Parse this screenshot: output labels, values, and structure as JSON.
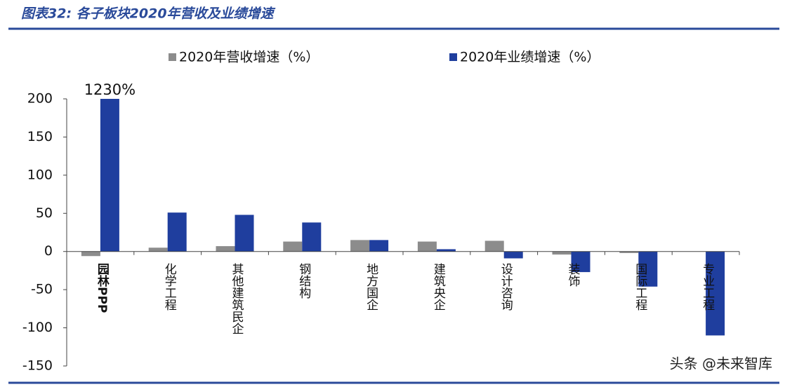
{
  "chart_data": {
    "type": "bar",
    "title": "图表32: 各子板块2020年营收及业绩增速",
    "categories": [
      "园林PPP",
      "化学工程",
      "其他建筑民企",
      "钢结构",
      "地方国企",
      "建筑央企",
      "设计咨询",
      "装饰",
      "国际工程",
      "专业工程"
    ],
    "series": [
      {
        "name": "2020年营收增速（%）",
        "color": "#8c8c8c",
        "values": [
          -6,
          5,
          7,
          13,
          15,
          13,
          14,
          -4,
          -2,
          0
        ]
      },
      {
        "name": "2020年业绩增速（%）",
        "color": "#1f3e9e",
        "values": [
          1230,
          51,
          48,
          38,
          15,
          3,
          -9,
          -27,
          -46,
          -110
        ],
        "value_labels": [
          "1230%",
          null,
          null,
          null,
          null,
          null,
          null,
          null,
          null,
          null
        ]
      }
    ],
    "ylim": [
      -150,
      200
    ],
    "yticks": [
      -150,
      -100,
      -50,
      0,
      50,
      100,
      150,
      200
    ],
    "watermark": "头条 @未来智库"
  }
}
